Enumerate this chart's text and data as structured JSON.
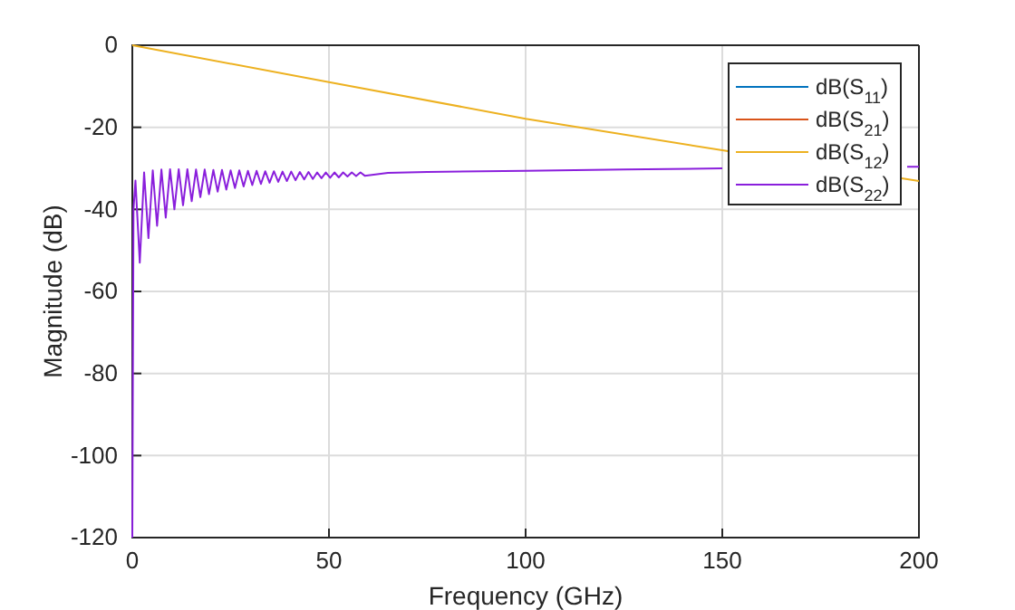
{
  "chart_data": {
    "type": "line",
    "xlabel": "Frequency (GHz)",
    "ylabel": "Magnitude (dB)",
    "xlim": [
      0,
      200
    ],
    "xticks": [
      0,
      50,
      100,
      150,
      200
    ],
    "ylim": [
      -120,
      0
    ],
    "yticks": [
      -120,
      -100,
      -80,
      -60,
      -40,
      -20,
      0
    ],
    "grid": true,
    "legend": "top right",
    "line_style": "solid",
    "series": [
      {
        "name": "dB(S$_{11}$)",
        "color": "#0072bd"
      },
      {
        "name": "dB(S$_{21}$)",
        "color": "#d95319"
      },
      {
        "name": "dB(S$_{12}$)",
        "color": "#edb120",
        "x": [
          0,
          50,
          100,
          150,
          200
        ],
        "values": [
          0,
          -9,
          -17.9,
          -25.6,
          -33.1
        ]
      },
      {
        "name": "dB(S$_{22}$)",
        "color": "#8a1fdc",
        "x": [
          0,
          0.3,
          0.8,
          1.9,
          3.0,
          4.1,
          5.2,
          6.3,
          7.4,
          8.5,
          9.6,
          10.7,
          11.8,
          12.9,
          14.0,
          15.1,
          16.2,
          17.3,
          18.4,
          19.5,
          20.6,
          21.7,
          22.8,
          23.9,
          25.0,
          26.1,
          27.2,
          28.3,
          29.4,
          30.5,
          31.6,
          32.7,
          33.8,
          34.9,
          36.0,
          37.1,
          38.2,
          39.3,
          40.4,
          41.5,
          42.6,
          43.7,
          44.8,
          45.9,
          47.0,
          48.1,
          49.2,
          50.3,
          51.4,
          52.5,
          53.6,
          54.7,
          55.8,
          56.9,
          58.0,
          59.1,
          65,
          75,
          100,
          125,
          150,
          175,
          197,
          200
        ],
        "values": [
          -120,
          -40,
          -33,
          -53,
          -31,
          -47,
          -30.5,
          -44,
          -30.3,
          -42,
          -30.2,
          -40,
          -30.2,
          -39,
          -30.2,
          -38,
          -30.3,
          -37,
          -30.3,
          -36.3,
          -30.4,
          -35.7,
          -30.4,
          -35.2,
          -30.5,
          -34.8,
          -30.5,
          -34.4,
          -30.6,
          -34.1,
          -30.6,
          -33.8,
          -30.7,
          -33.5,
          -30.7,
          -33.3,
          -30.8,
          -33.1,
          -30.8,
          -32.9,
          -30.9,
          -32.7,
          -30.9,
          -32.6,
          -31.0,
          -32.4,
          -31.0,
          -32.3,
          -31.0,
          -32.2,
          -31.0,
          -32.0,
          -31.0,
          -31.9,
          -31.0,
          -31.8,
          -31.1,
          -30.9,
          -30.6,
          -30.3,
          -30.0,
          null,
          -29.6,
          -29.6
        ]
      }
    ]
  }
}
